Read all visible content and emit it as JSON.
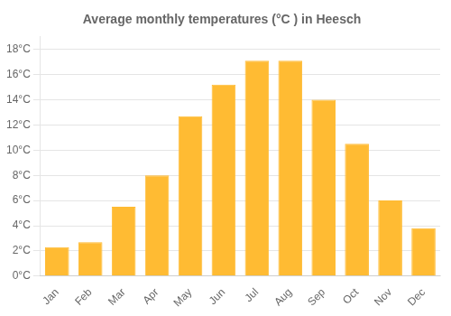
{
  "chart_data": {
    "type": "bar",
    "title": "Average monthly temperatures (°C ) in Heesch",
    "categories": [
      "Jan",
      "Feb",
      "Mar",
      "Apr",
      "May",
      "Jun",
      "Jul",
      "Aug",
      "Sep",
      "Oct",
      "Nov",
      "Dec"
    ],
    "values": [
      2.3,
      2.7,
      5.5,
      8.0,
      12.7,
      15.2,
      17.1,
      17.1,
      14.0,
      10.5,
      6.0,
      3.8
    ],
    "color": "#FFBB33",
    "ylim": [
      0,
      19
    ],
    "yticks": [
      {
        "value": 0,
        "label": "0°C"
      },
      {
        "value": 2,
        "label": "2°C"
      },
      {
        "value": 4,
        "label": "4°C"
      },
      {
        "value": 6,
        "label": "6°C"
      },
      {
        "value": 8,
        "label": "8°C"
      },
      {
        "value": 10,
        "label": "10°C"
      },
      {
        "value": 12,
        "label": "12°C"
      },
      {
        "value": 14,
        "label": "14°C"
      },
      {
        "value": 16,
        "label": "16°C"
      },
      {
        "value": 18,
        "label": "18°C"
      }
    ],
    "grid": true
  }
}
